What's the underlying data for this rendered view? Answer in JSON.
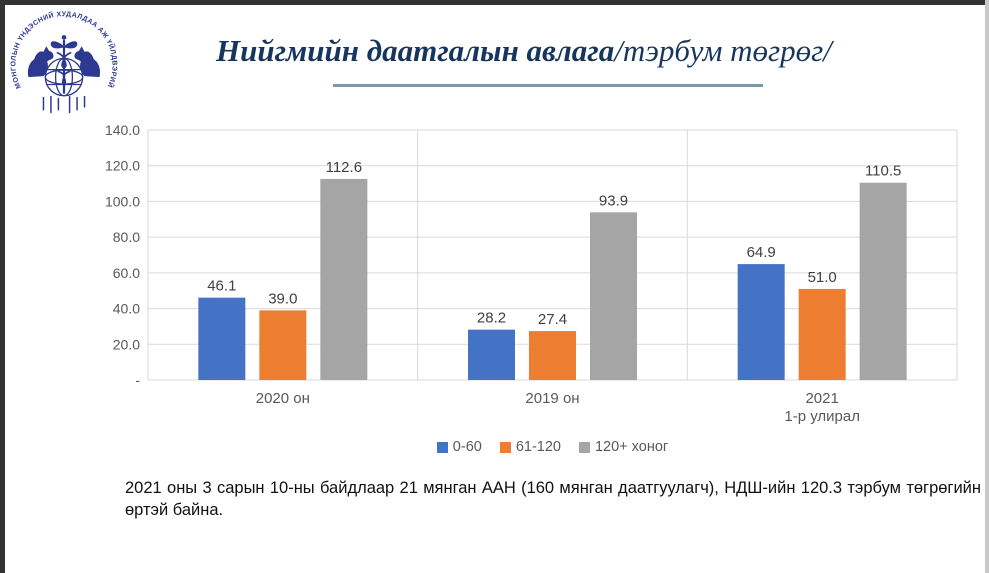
{
  "page": {
    "background": "#ffffff",
    "frame": {
      "top_color": "#333333",
      "left_color": "#333333",
      "right_color": "#c9c9c9"
    }
  },
  "header": {
    "title_main": "Нийгмийн даатгалын авлага",
    "title_sub": "/тэрбум төгрөг/",
    "title_color": "#17365d",
    "underline_color": "#7b98ad"
  },
  "logo": {
    "name": "mongolian-national-chamber-of-commerce-emblem",
    "ring_text": "МОНГОЛЫН ҮНДЭСНИЙ ХУДАЛДАА АЖ ҮЙЛДВЭРИЙН ТАНХИМ",
    "color": "#2b3990"
  },
  "chart_data": {
    "type": "bar",
    "title": "Нийгмийн даатгалын авлага /тэрбум төгрөг/",
    "categories": [
      [
        "2020 он"
      ],
      [
        "2019 он"
      ],
      [
        "2021",
        "1-р улирал"
      ]
    ],
    "series": [
      {
        "name": "0-60",
        "color": "#4472c4",
        "values": [
          46.1,
          28.2,
          64.9
        ],
        "labels": [
          "46.1",
          "28.2",
          "64.9"
        ]
      },
      {
        "name": "61-120",
        "color": "#ed7d31",
        "values": [
          39.0,
          27.4,
          51.0
        ],
        "labels": [
          "39.0",
          "27.4",
          "51.0"
        ]
      },
      {
        "name": "120+ хоног",
        "color": "#a5a5a5",
        "values": [
          112.6,
          93.9,
          110.5
        ],
        "labels": [
          "112.6",
          "93.9",
          "110.5"
        ]
      }
    ],
    "ylim": [
      0,
      140
    ],
    "y_tick_step": 20,
    "y_tick_labels": [
      "-",
      "20.0",
      "40.0",
      "60.0",
      "80.0",
      "100.0",
      "120.0",
      "140.0"
    ],
    "grid": true,
    "gridline_color": "#d9d9d9",
    "axis_label_color": "#595959",
    "value_label_color": "#404040",
    "legend_position": "bottom",
    "value_labels": true
  },
  "footer": {
    "text": "2021 оны 3 сарын 10-ны байдлаар 21 мянган ААН (160 мянган даатгуулагч), НДШ-ийн 120.3 тэрбум төгрөгийн өртэй байна."
  }
}
